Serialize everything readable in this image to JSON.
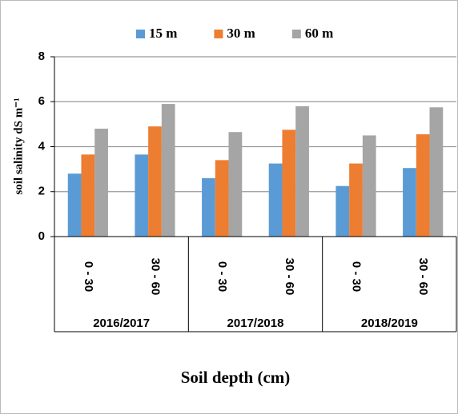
{
  "chart_data": {
    "type": "bar",
    "ylabel": "soil salinity dS m⁻¹",
    "xlabel": "Soil depth (cm)",
    "categories": [
      "0 - 30",
      "30 - 60",
      "0 - 30",
      "30 - 60",
      "0 - 30",
      "30 - 60"
    ],
    "groups": [
      "2016/2017",
      "2017/2018",
      "2018/2019"
    ],
    "series": [
      {
        "name": "15 m",
        "color": "#5b9bd5",
        "values": [
          2.8,
          3.65,
          2.6,
          3.25,
          2.25,
          3.05
        ]
      },
      {
        "name": "30 m",
        "color": "#ed7d31",
        "values": [
          3.65,
          4.9,
          3.4,
          4.75,
          3.25,
          4.55
        ]
      },
      {
        "name": "60 m",
        "color": "#a5a5a5",
        "values": [
          4.8,
          5.9,
          4.65,
          5.8,
          4.5,
          5.75
        ]
      }
    ],
    "ylim": [
      0,
      8
    ],
    "yticks": [
      0,
      2,
      4,
      6,
      8
    ],
    "grid": true,
    "legend": "top"
  }
}
